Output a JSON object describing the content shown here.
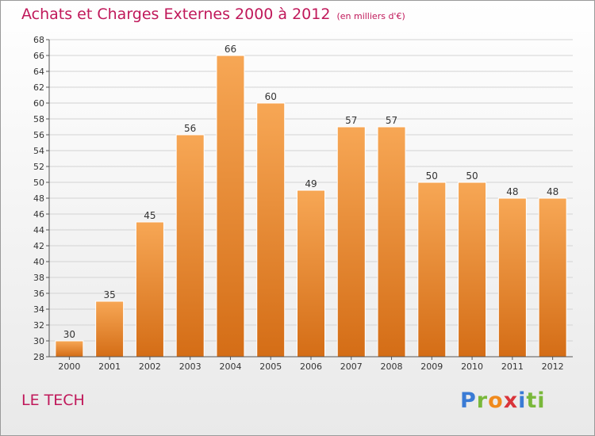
{
  "title": "Achats et Charges Externes 2000 à 2012",
  "unit": "(en milliers d'€)",
  "place": "LE TECH",
  "logo": {
    "letters": [
      "P",
      "r",
      "o",
      "x",
      "i",
      "ti"
    ]
  },
  "colors": {
    "title": "#c0185a",
    "bar_top": "#f7a755",
    "bar_bottom": "#d46d16",
    "axis": "#555555"
  },
  "chart_data": {
    "type": "bar",
    "title": "Achats et Charges Externes 2000 à 2012",
    "categories": [
      "2000",
      "2001",
      "2002",
      "2003",
      "2004",
      "2005",
      "2006",
      "2007",
      "2008",
      "2009",
      "2010",
      "2011",
      "2012"
    ],
    "values": [
      30,
      35,
      45,
      56,
      66,
      60,
      49,
      57,
      57,
      50,
      50,
      48,
      48
    ],
    "ylim": [
      28,
      68
    ],
    "yticks": [
      28,
      30,
      32,
      34,
      36,
      38,
      40,
      42,
      44,
      46,
      48,
      50,
      52,
      54,
      56,
      58,
      60,
      62,
      64,
      66,
      68
    ],
    "grid": true,
    "data_labels": true
  }
}
